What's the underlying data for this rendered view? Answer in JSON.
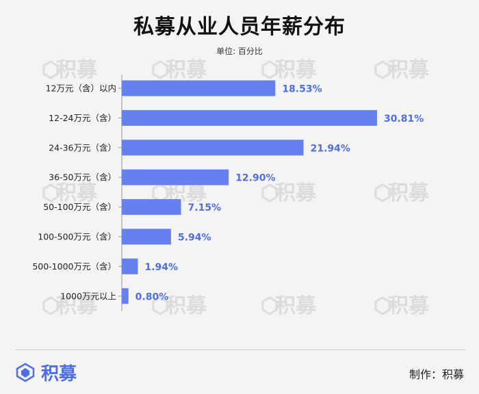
{
  "title": "私募从业人员年薪分布",
  "subtitle": "单位: 百分比",
  "colors": {
    "bar": "#6680ef",
    "label": "#4f6ee0",
    "axis": "#999999",
    "text": "#222222",
    "watermark": "#dcdcdc"
  },
  "watermark_text": "积募",
  "footer": {
    "logo_text": "积募",
    "credit_label": "制作：",
    "credit_value": "积募"
  },
  "chart_data": {
    "type": "bar",
    "orientation": "horizontal",
    "categories": [
      "12万元（含）以内",
      "12-24万元（含）",
      "24-36万元（含）",
      "36-50万元（含）",
      "50-100万元（含）",
      "100-500万元（含）",
      "500-1000万元（含）",
      "1000万元以上"
    ],
    "values": [
      18.53,
      30.81,
      21.94,
      12.9,
      7.15,
      5.94,
      1.94,
      0.8
    ],
    "value_labels": [
      "18.53%",
      "30.81%",
      "21.94%",
      "12.90%",
      "7.15%",
      "5.94%",
      "1.94%",
      "0.80%"
    ],
    "title": "私募从业人员年薪分布",
    "xlabel": "",
    "ylabel": "",
    "xlim": [
      0,
      30.81
    ],
    "grid": false,
    "legend": "none"
  }
}
